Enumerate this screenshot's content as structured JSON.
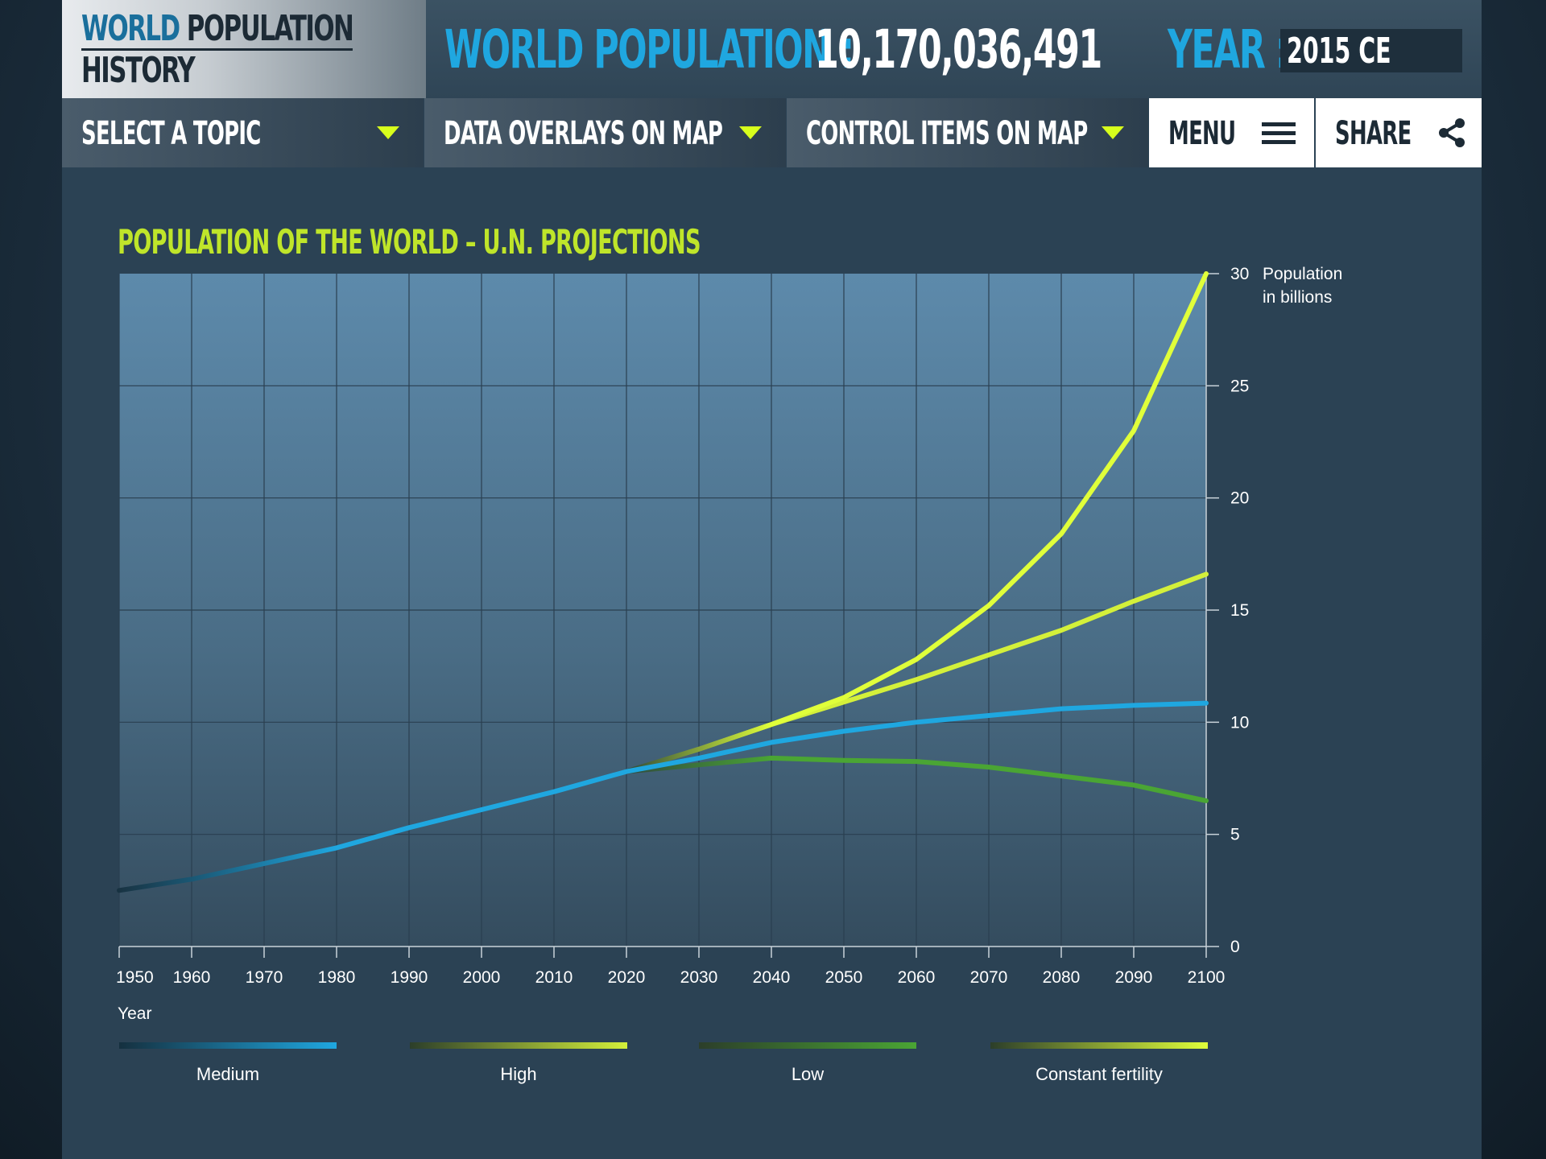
{
  "header": {
    "logo_line1_part1": "WORLD",
    "logo_line1_part2": "POPULATION",
    "logo_line2": "HISTORY",
    "world_population_label": "WORLD POPULATION :",
    "world_population_value": "10,170,036,491",
    "year_label": "YEAR :",
    "year_value": "2015 CE"
  },
  "nav": {
    "select_topic": "SELECT A TOPIC",
    "data_overlays": "DATA OVERLAYS ON MAP",
    "control_items": "CONTROL ITEMS  ON  MAP",
    "menu": "MENU",
    "share": "SHARE"
  },
  "colors": {
    "accent_blue": "#1fa7e0",
    "accent_yellow": "#d8ff1c",
    "title_green": "#bfe52a",
    "medium": "#1fa7e0",
    "high": "#d4f03a",
    "low": "#4aa534",
    "constant": "#e0ff3a"
  },
  "chart_data": {
    "type": "line",
    "title": "POPULATION OF THE WORLD  – U.N. PROJECTIONS",
    "xlabel": "Year",
    "ylabel": "Population in billions",
    "ylabel_line1": "Population",
    "ylabel_line2": "in billions",
    "y_axis_position": "right",
    "xlim": [
      1950,
      2100
    ],
    "ylim": [
      0,
      30
    ],
    "x_ticks": [
      1950,
      1960,
      1970,
      1980,
      1990,
      2000,
      2010,
      2020,
      2030,
      2040,
      2050,
      2060,
      2070,
      2080,
      2090,
      2100
    ],
    "y_ticks": [
      0,
      5,
      10,
      15,
      20,
      25,
      30
    ],
    "grid": true,
    "legend_position": "bottom",
    "series": [
      {
        "name": "Medium",
        "color": "#1fa7e0",
        "x": [
          1950,
          1960,
          1970,
          1980,
          1990,
          2000,
          2010,
          2020,
          2030,
          2040,
          2050,
          2060,
          2070,
          2080,
          2090,
          2100
        ],
        "values": [
          2.5,
          3.0,
          3.7,
          4.4,
          5.3,
          6.1,
          6.9,
          7.8,
          8.4,
          9.1,
          9.6,
          10.0,
          10.3,
          10.6,
          10.75,
          10.85
        ]
      },
      {
        "name": "High",
        "color": "#d4f03a",
        "x": [
          2020,
          2030,
          2040,
          2050,
          2060,
          2070,
          2080,
          2090,
          2100
        ],
        "values": [
          7.8,
          8.8,
          9.9,
          10.9,
          11.9,
          13.0,
          14.1,
          15.4,
          16.6
        ]
      },
      {
        "name": "Low",
        "color": "#4aa534",
        "x": [
          2020,
          2030,
          2040,
          2050,
          2060,
          2070,
          2080,
          2090,
          2100
        ],
        "values": [
          7.8,
          8.1,
          8.4,
          8.3,
          8.25,
          8.0,
          7.6,
          7.2,
          6.5
        ]
      },
      {
        "name": "Constant fertility",
        "color": "#e0ff3a",
        "x": [
          2020,
          2030,
          2040,
          2050,
          2060,
          2070,
          2080,
          2090,
          2100
        ],
        "values": [
          7.8,
          8.8,
          9.9,
          11.1,
          12.8,
          15.2,
          18.4,
          23.0,
          30.0
        ]
      }
    ]
  }
}
